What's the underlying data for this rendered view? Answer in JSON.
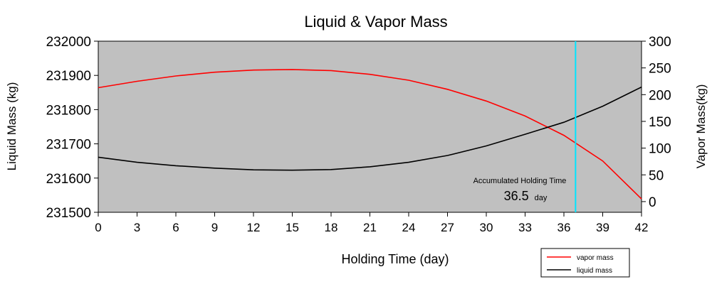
{
  "chart_data": {
    "type": "line",
    "title": "Liquid & Vapor Mass",
    "xlabel": "Holding Time (day)",
    "ylabel_left": "Liquid Mass (kg)",
    "ylabel_right": "Vapor Mass(kg)",
    "xlim": [
      0,
      42
    ],
    "ylim_left": [
      231500,
      232000
    ],
    "ylim_right": [
      -20,
      300
    ],
    "x_ticks": [
      "0",
      "3",
      "6",
      "9",
      "12",
      "15",
      "18",
      "21",
      "24",
      "27",
      "30",
      "33",
      "36",
      "39",
      "42"
    ],
    "y_left_ticks": [
      "231500",
      "231600",
      "231700",
      "231800",
      "231900",
      "232000"
    ],
    "y_right_ticks": [
      "0",
      "50",
      "100",
      "150",
      "200",
      "250",
      "300"
    ],
    "plot_background": "#c0c0c0",
    "grid": false,
    "legend_position": "bottom-right",
    "series": [
      {
        "name": "vapor mass",
        "axis": "right",
        "color": "#ff0000",
        "x": [
          0,
          3,
          6,
          9,
          12,
          15,
          18,
          21,
          24,
          27,
          30,
          33,
          36,
          39,
          42
        ],
        "y": [
          213,
          225,
          235,
          242,
          246,
          247,
          245,
          238,
          227,
          210,
          188,
          160,
          124,
          76,
          5
        ]
      },
      {
        "name": "liquid mass",
        "axis": "left",
        "color": "#000000",
        "x": [
          0,
          3,
          6,
          9,
          12,
          15,
          18,
          21,
          24,
          27,
          30,
          33,
          36,
          39,
          42
        ],
        "y": [
          231661,
          231646,
          231636,
          231629,
          231624,
          231623,
          231625,
          231633,
          231646,
          231666,
          231694,
          231728,
          231763,
          231810,
          231866
        ]
      }
    ],
    "marker": {
      "x": 36.9,
      "color": "#00e5ff"
    },
    "annotation": {
      "label": "Accumulated Holding Time",
      "value": "36.5",
      "unit": "day"
    }
  }
}
